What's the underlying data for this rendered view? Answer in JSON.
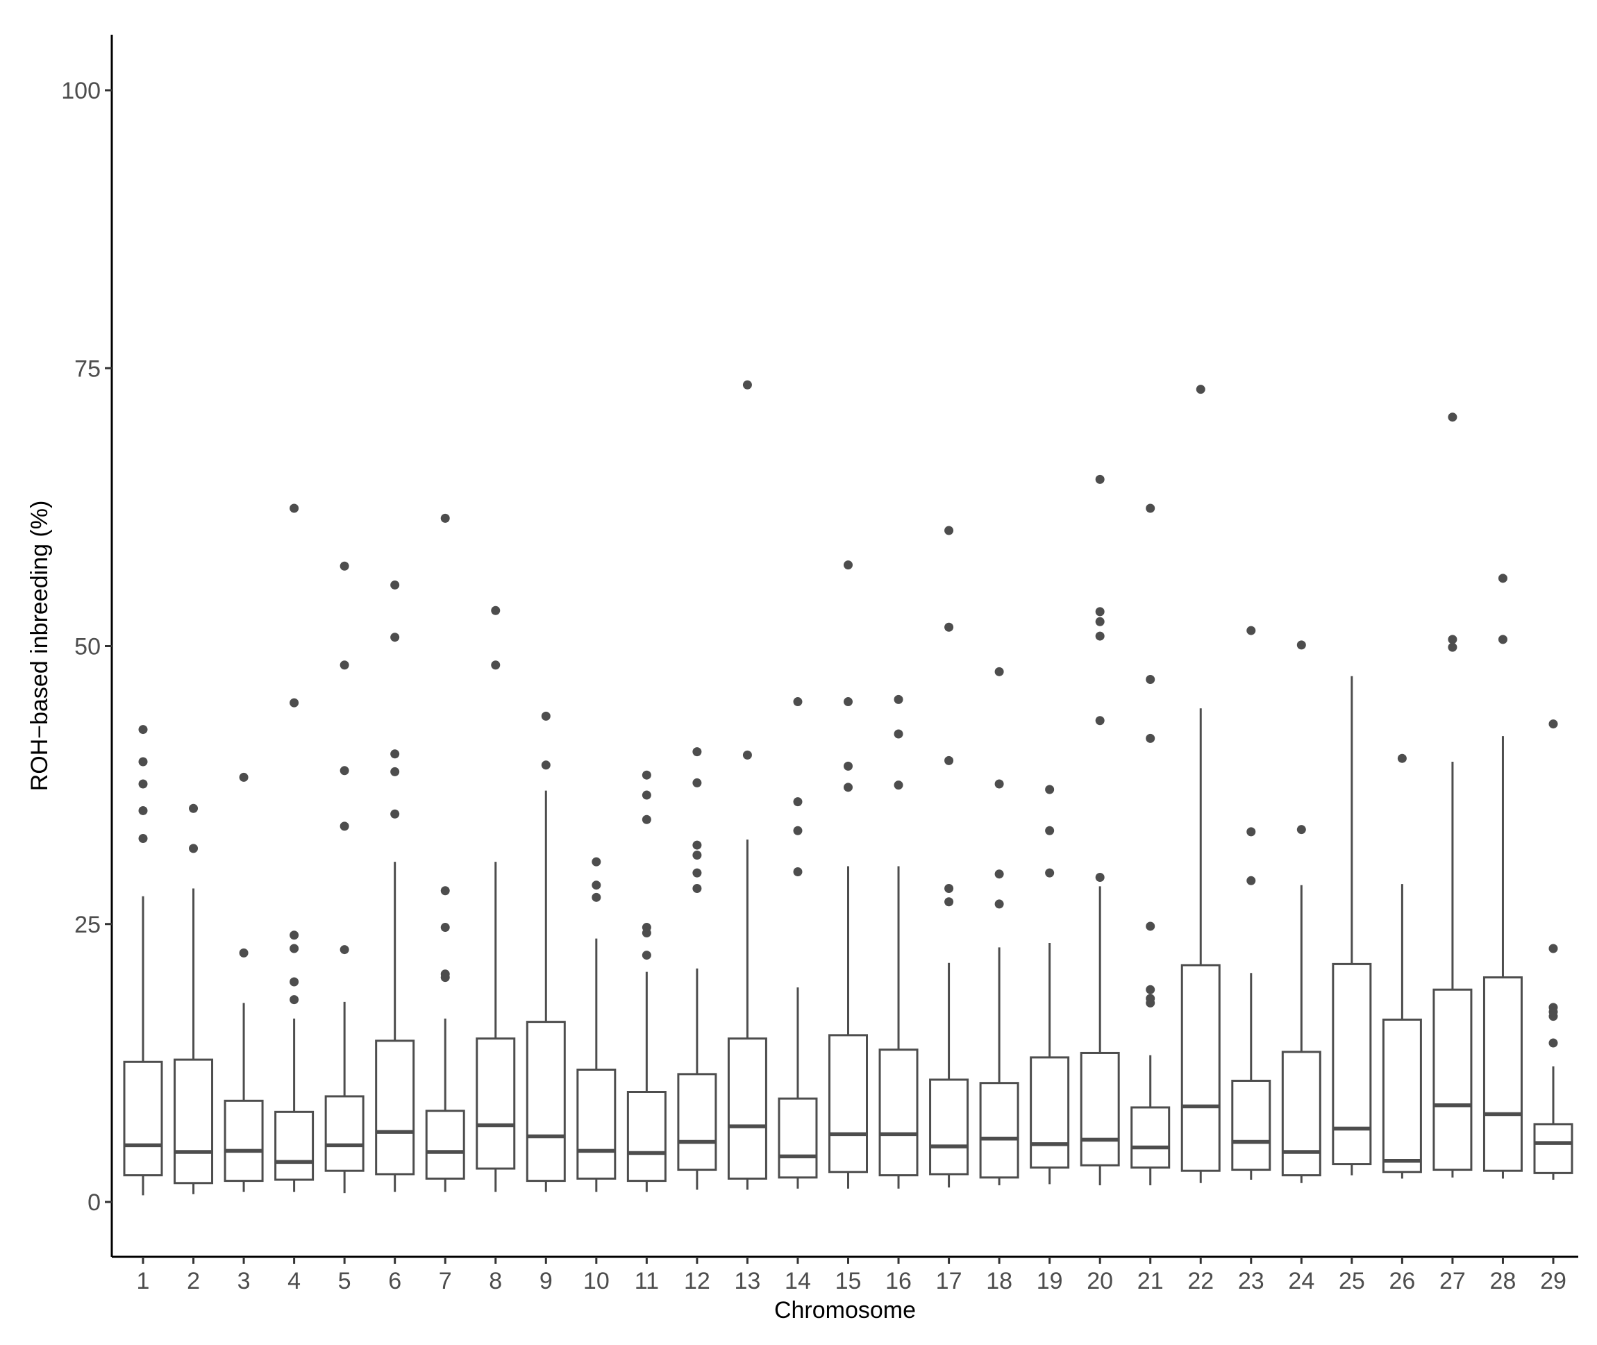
{
  "chart_data": {
    "type": "boxplot",
    "title": "",
    "xlabel": "Chromosome",
    "ylabel": "ROH−based inbreeding (%)",
    "ylim": [
      -5,
      105
    ],
    "yticks": [
      0,
      25,
      50,
      75,
      100
    ],
    "grid": false,
    "legend": "none",
    "colors": {
      "stroke": "#4d4d4d",
      "fill": "#ffffff",
      "axis": "#000000"
    },
    "categories": [
      "1",
      "2",
      "3",
      "4",
      "5",
      "6",
      "7",
      "8",
      "9",
      "10",
      "11",
      "12",
      "13",
      "14",
      "15",
      "16",
      "17",
      "18",
      "19",
      "20",
      "21",
      "22",
      "23",
      "24",
      "25",
      "26",
      "27",
      "28",
      "29"
    ],
    "boxes": [
      {
        "min": 0.6,
        "q1": 2.4,
        "median": 5.1,
        "q3": 12.6,
        "max": 27.5,
        "outliers": [
          32.7,
          35.2,
          37.6,
          39.6,
          42.5
        ]
      },
      {
        "min": 0.7,
        "q1": 1.7,
        "median": 4.5,
        "q3": 12.8,
        "max": 28.2,
        "outliers": [
          31.8,
          35.4
        ]
      },
      {
        "min": 0.9,
        "q1": 1.9,
        "median": 4.6,
        "q3": 9.1,
        "max": 17.9,
        "outliers": [
          22.4,
          38.2
        ]
      },
      {
        "min": 0.9,
        "q1": 2.0,
        "median": 3.6,
        "q3": 8.1,
        "max": 16.5,
        "outliers": [
          18.2,
          19.8,
          22.8,
          24.0,
          44.9,
          62.4
        ]
      },
      {
        "min": 0.8,
        "q1": 2.8,
        "median": 5.1,
        "q3": 9.5,
        "max": 18.0,
        "outliers": [
          22.7,
          33.8,
          38.8,
          48.3,
          57.2
        ]
      },
      {
        "min": 0.9,
        "q1": 2.5,
        "median": 6.3,
        "q3": 14.5,
        "max": 30.6,
        "outliers": [
          34.9,
          38.7,
          40.3,
          50.8,
          55.5
        ]
      },
      {
        "min": 0.9,
        "q1": 2.1,
        "median": 4.5,
        "q3": 8.2,
        "max": 16.5,
        "outliers": [
          20.2,
          20.5,
          24.7,
          28.0,
          61.5
        ]
      },
      {
        "min": 0.9,
        "q1": 3.0,
        "median": 6.9,
        "q3": 14.7,
        "max": 30.6,
        "outliers": [
          48.3,
          53.2
        ]
      },
      {
        "min": 0.9,
        "q1": 1.9,
        "median": 5.9,
        "q3": 16.2,
        "max": 37.0,
        "outliers": [
          39.3,
          43.7
        ]
      },
      {
        "min": 0.9,
        "q1": 2.1,
        "median": 4.6,
        "q3": 11.9,
        "max": 23.7,
        "outliers": [
          27.4,
          28.5,
          30.6
        ]
      },
      {
        "min": 0.9,
        "q1": 1.9,
        "median": 4.4,
        "q3": 9.9,
        "max": 20.7,
        "outliers": [
          22.2,
          24.2,
          24.7,
          34.4,
          36.6,
          38.4
        ]
      },
      {
        "min": 1.1,
        "q1": 2.9,
        "median": 5.4,
        "q3": 11.5,
        "max": 21.0,
        "outliers": [
          28.2,
          29.6,
          31.2,
          32.1,
          37.7,
          40.5
        ]
      },
      {
        "min": 1.1,
        "q1": 2.1,
        "median": 6.8,
        "q3": 14.7,
        "max": 32.6,
        "outliers": [
          40.2,
          73.5
        ]
      },
      {
        "min": 1.2,
        "q1": 2.2,
        "median": 4.1,
        "q3": 9.3,
        "max": 19.3,
        "outliers": [
          29.7,
          33.4,
          36.0,
          45.0
        ]
      },
      {
        "min": 1.2,
        "q1": 2.7,
        "median": 6.1,
        "q3": 15.0,
        "max": 30.2,
        "outliers": [
          37.3,
          39.2,
          45.0,
          57.3
        ]
      },
      {
        "min": 1.2,
        "q1": 2.4,
        "median": 6.1,
        "q3": 13.7,
        "max": 30.2,
        "outliers": [
          37.5,
          42.1,
          45.2
        ]
      },
      {
        "min": 1.3,
        "q1": 2.5,
        "median": 5.0,
        "q3": 11.0,
        "max": 21.5,
        "outliers": [
          27.0,
          28.2,
          39.7,
          51.7,
          60.4
        ]
      },
      {
        "min": 1.5,
        "q1": 2.2,
        "median": 5.7,
        "q3": 10.7,
        "max": 22.9,
        "outliers": [
          26.8,
          29.5,
          37.6,
          47.7
        ]
      },
      {
        "min": 1.6,
        "q1": 3.1,
        "median": 5.2,
        "q3": 13.0,
        "max": 23.3,
        "outliers": [
          29.6,
          33.4,
          37.1
        ]
      },
      {
        "min": 1.5,
        "q1": 3.3,
        "median": 5.6,
        "q3": 13.4,
        "max": 28.4,
        "outliers": [
          29.2,
          43.3,
          50.9,
          52.2,
          53.1,
          65.0
        ]
      },
      {
        "min": 1.5,
        "q1": 3.1,
        "median": 4.9,
        "q3": 8.5,
        "max": 13.2,
        "outliers": [
          17.9,
          18.3,
          19.1,
          24.8,
          41.7,
          47.0,
          62.4
        ]
      },
      {
        "min": 1.7,
        "q1": 2.8,
        "median": 8.6,
        "q3": 21.3,
        "max": 44.4,
        "outliers": [
          73.1
        ]
      },
      {
        "min": 2.0,
        "q1": 2.9,
        "median": 5.4,
        "q3": 10.9,
        "max": 20.6,
        "outliers": [
          28.9,
          33.3,
          51.4
        ]
      },
      {
        "min": 1.7,
        "q1": 2.4,
        "median": 4.5,
        "q3": 13.5,
        "max": 28.5,
        "outliers": [
          33.5,
          50.1
        ]
      },
      {
        "min": 2.4,
        "q1": 3.4,
        "median": 6.6,
        "q3": 21.4,
        "max": 47.3,
        "outliers": []
      },
      {
        "min": 2.1,
        "q1": 2.7,
        "median": 3.7,
        "q3": 16.4,
        "max": 28.6,
        "outliers": [
          39.9
        ]
      },
      {
        "min": 2.2,
        "q1": 2.9,
        "median": 8.7,
        "q3": 19.1,
        "max": 39.6,
        "outliers": [
          49.9,
          50.6,
          70.6
        ]
      },
      {
        "min": 2.1,
        "q1": 2.8,
        "median": 7.9,
        "q3": 20.2,
        "max": 41.9,
        "outliers": [
          50.6,
          56.1
        ]
      },
      {
        "min": 2.0,
        "q1": 2.6,
        "median": 5.3,
        "q3": 7.0,
        "max": 12.2,
        "outliers": [
          14.3,
          16.7,
          17.1,
          17.5,
          22.8,
          43.0
        ]
      }
    ]
  }
}
